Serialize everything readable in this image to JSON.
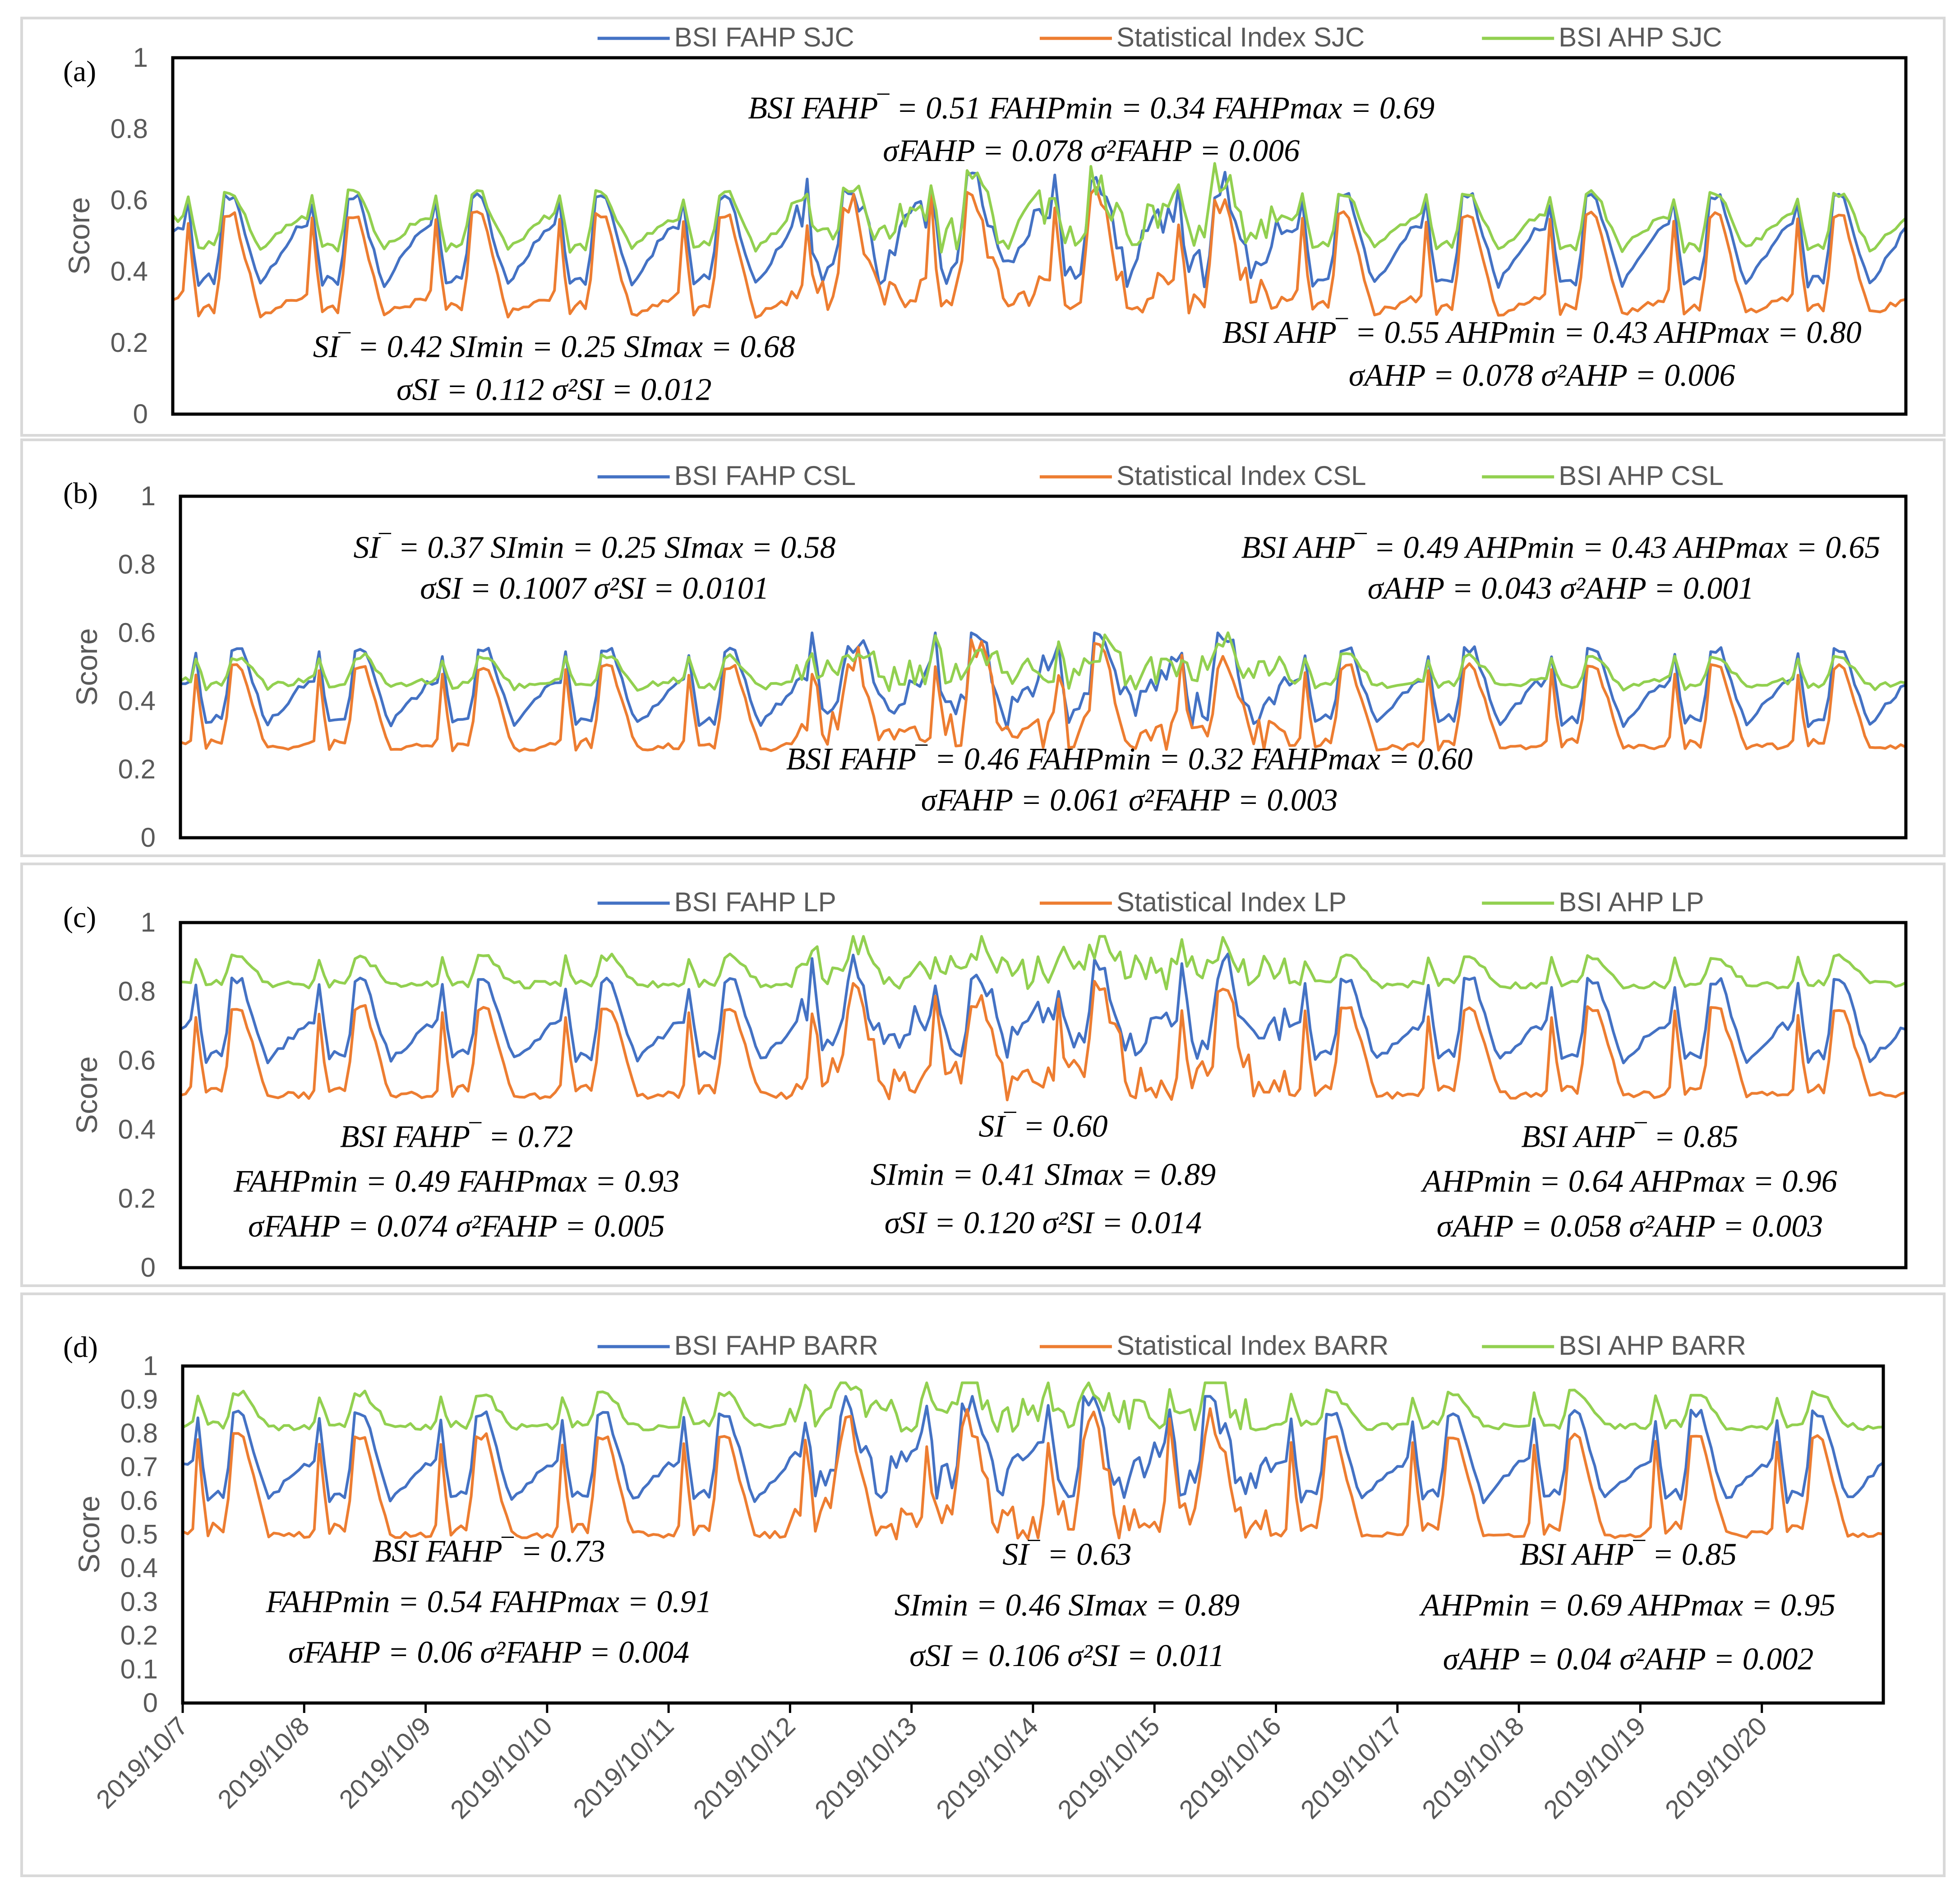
{
  "x_dates": [
    "2019/10/7",
    "2019/10/8",
    "2019/10/9",
    "2019/10/10",
    "2019/10/11",
    "2019/10/12",
    "2019/10/13",
    "2019/10/14",
    "2019/10/15",
    "2019/10/16",
    "2019/10/17",
    "2019/10/18",
    "2019/10/19",
    "2019/10/20"
  ],
  "colors": {
    "fahp": "#4472c4",
    "si": "#ed7d31",
    "ahp": "#92d050"
  },
  "chart_data": [
    {
      "type": "line",
      "tag": "(a)",
      "ylabel": "Score",
      "ylim": [
        0,
        1
      ],
      "yticks": [
        "0",
        "0.2",
        "0.4",
        "0.6",
        "0.8",
        "1"
      ],
      "legend": [
        "BSI FAHP SJC",
        "Statistical Index SJC",
        "BSI AHP SJC"
      ],
      "x_points_per_day": 24,
      "annotations": [
        "BSI FAHP‾ = 0.51  FAHPmin = 0.34  FAHPmax = 0.69",
        "σFAHP = 0.078  σ²FAHP = 0.006",
        "SI‾ = 0.42  SImin = 0.25  SImax = 0.68",
        "σSI = 0.112  σ²SI = 0.012",
        "BSI AHP‾ = 0.55  AHPmin = 0.43  AHPmax = 0.80",
        "σAHP = 0.078  σ²AHP = 0.006"
      ],
      "series": [
        {
          "name": "BSI FAHP SJC",
          "stats": {
            "mean": 0.51,
            "min": 0.34,
            "max": 0.69,
            "sd": 0.078,
            "var": 0.006
          },
          "day_low": 0.36,
          "day_high": 0.61,
          "day_base": 0.52
        },
        {
          "name": "Statistical Index SJC",
          "stats": {
            "mean": 0.42,
            "min": 0.25,
            "max": 0.68,
            "sd": 0.112,
            "var": 0.012
          },
          "day_low": 0.28,
          "day_high": 0.56,
          "day_base": 0.32
        },
        {
          "name": "BSI AHP SJC",
          "stats": {
            "mean": 0.55,
            "min": 0.43,
            "max": 0.8,
            "sd": 0.078,
            "var": 0.006
          },
          "day_low": 0.46,
          "day_high": 0.62,
          "day_base": 0.55
        }
      ]
    },
    {
      "type": "line",
      "tag": "(b)",
      "ylabel": "Score",
      "ylim": [
        0,
        1
      ],
      "yticks": [
        "0",
        "0.2",
        "0.4",
        "0.6",
        "0.8",
        "1"
      ],
      "legend": [
        "BSI FAHP CSL",
        "Statistical Index CSL",
        "BSI AHP CSL"
      ],
      "x_points_per_day": 24,
      "annotations": [
        "SI‾ = 0.37  SImin = 0.25  SImax = 0.58",
        "σSI = 0.1007  σ²SI = 0.0101",
        "BSI AHP‾ = 0.49  AHPmin = 0.43  AHPmax = 0.65",
        "σAHP = 0.043  σ²AHP = 0.001",
        "BSI FAHP‾ = 0.46  FAHPmin = 0.32  FAHPmax = 0.60",
        "σFAHP = 0.061  σ²FAHP = 0.003"
      ],
      "series": [
        {
          "name": "BSI FAHP CSL",
          "stats": {
            "mean": 0.46,
            "min": 0.32,
            "max": 0.6,
            "sd": 0.061,
            "var": 0.003
          },
          "day_low": 0.33,
          "day_high": 0.55,
          "day_base": 0.45
        },
        {
          "name": "Statistical Index CSL",
          "stats": {
            "mean": 0.37,
            "min": 0.25,
            "max": 0.58,
            "sd": 0.1007,
            "var": 0.0101
          },
          "day_low": 0.26,
          "day_high": 0.5,
          "day_base": 0.27
        },
        {
          "name": "BSI AHP CSL",
          "stats": {
            "mean": 0.49,
            "min": 0.43,
            "max": 0.65,
            "sd": 0.043,
            "var": 0.001
          },
          "day_low": 0.44,
          "day_high": 0.53,
          "day_base": 0.46
        }
      ]
    },
    {
      "type": "line",
      "tag": "(c)",
      "ylabel": "Score",
      "ylim": [
        0,
        1
      ],
      "yticks": [
        "0",
        "0.2",
        "0.4",
        "0.6",
        "0.8",
        "1"
      ],
      "legend": [
        "BSI FAHP LP",
        "Statistical Index LP",
        "BSI AHP LP"
      ],
      "x_points_per_day": 24,
      "annotations": [
        "BSI FAHP‾ = 0.72",
        "FAHPmin = 0.49  FAHPmax = 0.93",
        "σFAHP = 0.074  σ²FAHP = 0.005",
        "SI‾ = 0.60",
        "SImin = 0.41  SImax = 0.89",
        "σSI = 0.120  σ²SI = 0.014",
        "BSI AHP‾ = 0.85",
        "AHPmin = 0.64  AHPmax = 0.96",
        "σAHP = 0.058  σ²AHP = 0.003"
      ],
      "series": [
        {
          "name": "BSI FAHP LP",
          "stats": {
            "mean": 0.72,
            "min": 0.49,
            "max": 0.93,
            "sd": 0.074,
            "var": 0.005
          },
          "day_low": 0.6,
          "day_high": 0.83,
          "day_base": 0.7
        },
        {
          "name": "Statistical Index LP",
          "stats": {
            "mean": 0.6,
            "min": 0.41,
            "max": 0.89,
            "sd": 0.12,
            "var": 0.014
          },
          "day_low": 0.5,
          "day_high": 0.75,
          "day_base": 0.5
        },
        {
          "name": "BSI AHP LP",
          "stats": {
            "mean": 0.85,
            "min": 0.64,
            "max": 0.96,
            "sd": 0.058,
            "var": 0.003
          },
          "day_low": 0.82,
          "day_high": 0.9,
          "day_base": 0.82
        }
      ]
    },
    {
      "type": "line",
      "tag": "(d)",
      "ylabel": "Score",
      "ylim": [
        0,
        1
      ],
      "yticks": [
        "0",
        "0.1",
        "0.2",
        "0.3",
        "0.4",
        "0.5",
        "0.6",
        "0.7",
        "0.8",
        "0.9",
        "1"
      ],
      "legend": [
        "BSI FAHP BARR",
        "Statistical Index BARR",
        "BSI AHP BARR"
      ],
      "x_points_per_day": 24,
      "annotations": [
        "BSI FAHP‾ = 0.73",
        "FAHPmin = 0.54  FAHPmax = 0.91",
        "σFAHP = 0.06  σ²FAHP = 0.004",
        "SI‾ = 0.63",
        "SImin = 0.46  SImax = 0.89",
        "σSI = 0.106  σ²SI = 0.011",
        "BSI AHP‾ = 0.85",
        "AHPmin = 0.69  AHPmax = 0.95",
        "σAHP = 0.04  σ²AHP = 0.002"
      ],
      "series": [
        {
          "name": "BSI FAHP BARR",
          "stats": {
            "mean": 0.73,
            "min": 0.54,
            "max": 0.91,
            "sd": 0.06,
            "var": 0.004
          },
          "day_low": 0.6,
          "day_high": 0.86,
          "day_base": 0.71
        },
        {
          "name": "Statistical Index BARR",
          "stats": {
            "mean": 0.63,
            "min": 0.46,
            "max": 0.89,
            "sd": 0.106,
            "var": 0.011
          },
          "day_low": 0.5,
          "day_high": 0.79,
          "day_base": 0.5
        },
        {
          "name": "BSI AHP BARR",
          "stats": {
            "mean": 0.85,
            "min": 0.69,
            "max": 0.95,
            "sd": 0.04,
            "var": 0.002
          },
          "day_low": 0.82,
          "day_high": 0.92,
          "day_base": 0.82
        }
      ]
    }
  ]
}
